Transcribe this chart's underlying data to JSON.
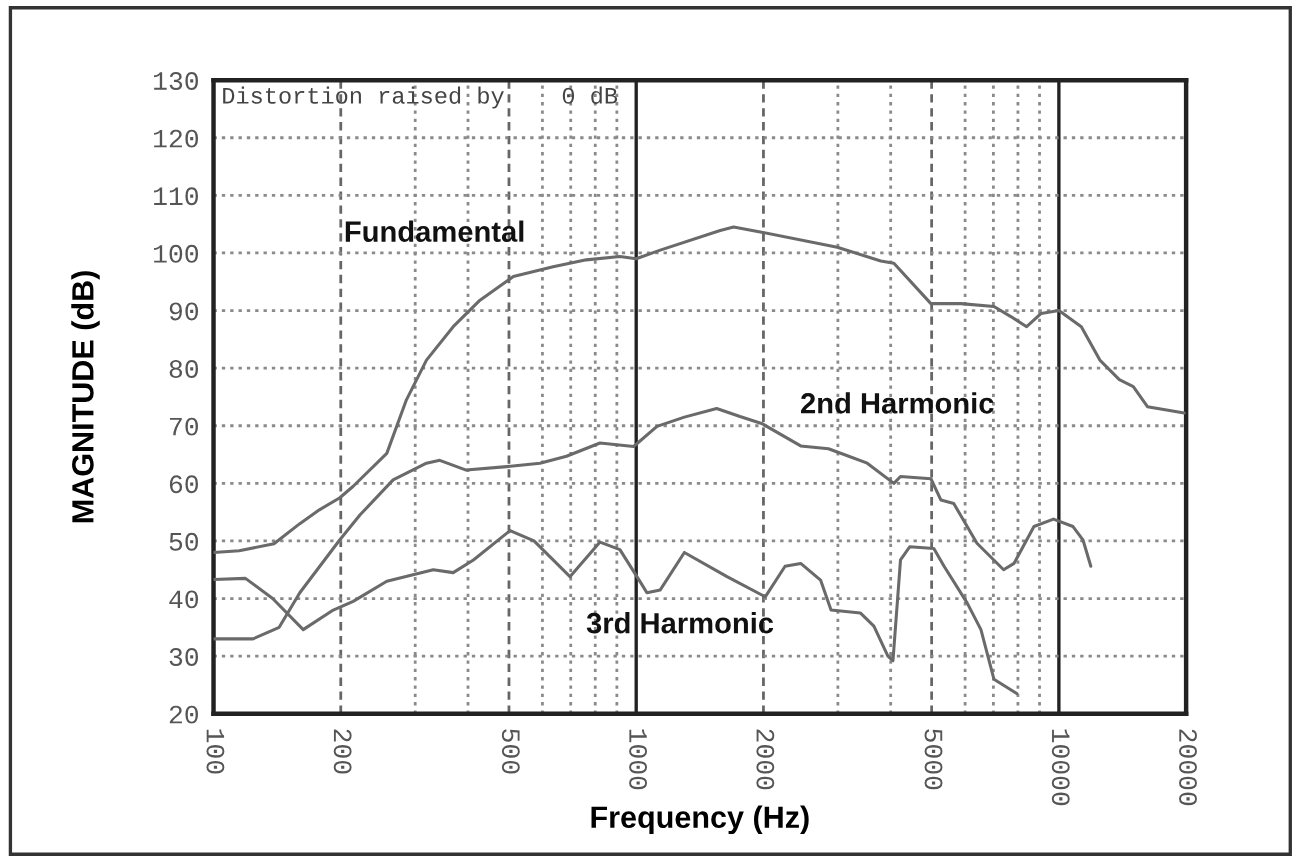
{
  "chart_data": {
    "type": "line",
    "xlabel": "Frequency (Hz)",
    "ylabel": "MAGNITUDE (dB)",
    "annotations": [
      "Distortion raised by    0 dB"
    ],
    "log": "x",
    "xlim": [
      100,
      20000
    ],
    "ylim": [
      20,
      130
    ],
    "xticks": [
      100,
      200,
      {
        "value": 300,
        "label": null
      },
      {
        "value": 400,
        "label": null
      },
      500,
      {
        "value": 600,
        "label": null
      },
      {
        "value": 700,
        "label": null
      },
      {
        "value": 800,
        "label": null
      },
      {
        "value": 900,
        "label": null
      },
      1000,
      2000,
      {
        "value": 3000,
        "label": null
      },
      {
        "value": 4000,
        "label": null
      },
      5000,
      {
        "value": 6000,
        "label": null
      },
      {
        "value": 7000,
        "label": null
      },
      {
        "value": 8000,
        "label": null
      },
      {
        "value": 9000,
        "label": null
      },
      10000,
      20000
    ],
    "yticks": [
      20,
      30,
      40,
      50,
      60,
      70,
      80,
      90,
      100,
      110,
      120,
      130
    ],
    "grid": true,
    "line_style": "solid",
    "marker": "none",
    "series": [
      {
        "name": "Fundamental",
        "color": "#6a6a6a",
        "x": [
          100,
          115,
          139,
          160,
          178,
          199,
          214,
          257,
          286,
          319,
          369,
          427,
          512,
          636,
          762,
          915,
          1000,
          1140,
          1580,
          1700,
          1980,
          2990,
          3790,
          4070,
          4980,
          5860,
          7020,
          7680,
          8390,
          9080,
          10000,
          11300,
          12500,
          13900,
          15000,
          16200,
          19800
        ],
        "values": [
          48,
          48.3,
          49.5,
          53,
          55.4,
          57.5,
          59.5,
          65.2,
          74.5,
          81.4,
          87.2,
          91.8,
          95.9,
          97.6,
          98.8,
          99.4,
          99,
          100.5,
          103.9,
          104.5,
          103.6,
          101,
          98.6,
          98.2,
          91.2,
          91.2,
          90.7,
          89,
          87.2,
          89.5,
          90,
          87.2,
          81.4,
          78,
          76.8,
          73.3,
          72.2
        ]
      },
      {
        "name": "2nd Harmonic",
        "color": "#6a6a6a",
        "x": [
          100,
          124,
          143,
          160,
          199,
          222,
          266,
          319,
          343,
          396,
          494,
          592,
          684,
          821,
          986,
          1120,
          1300,
          1550,
          1760,
          1980,
          2450,
          2850,
          3160,
          3520,
          4070,
          4220,
          4980,
          5260,
          5640,
          6400,
          7400,
          7830,
          8730,
          9710,
          10800,
          11400,
          11900
        ],
        "values": [
          33,
          33,
          35,
          41,
          50.2,
          54.5,
          60.6,
          63.5,
          64,
          62.3,
          62.9,
          63.5,
          64.7,
          67,
          66.4,
          69.9,
          71.5,
          73,
          71.6,
          70.4,
          66.5,
          66,
          64.8,
          63.5,
          60,
          61.2,
          60.8,
          57.1,
          56.5,
          49.6,
          45,
          46.1,
          52.5,
          53.8,
          52.5,
          50.2,
          45.6
        ]
      },
      {
        "name": "3rd Harmonic",
        "color": "#6a6a6a",
        "x": [
          100,
          119,
          138,
          163,
          192,
          214,
          257,
          331,
          369,
          412,
          503,
          573,
          697,
          821,
          915,
          1030,
          1060,
          1140,
          1300,
          1640,
          2020,
          2250,
          2450,
          2730,
          2890,
          3390,
          3650,
          3940,
          4050,
          4220,
          4440,
          5060,
          5350,
          6070,
          6540,
          7020,
          7950
        ],
        "values": [
          43.3,
          43.5,
          40,
          34.6,
          38,
          39.5,
          43,
          45,
          44.5,
          46.7,
          51.8,
          50,
          43.8,
          49.8,
          48.5,
          42.5,
          41,
          41.5,
          48,
          43.8,
          40.3,
          45.6,
          46.1,
          43.2,
          38,
          37.5,
          35.2,
          30,
          29.2,
          46.7,
          49,
          48.7,
          45.6,
          39.2,
          34.6,
          26,
          23.5
        ]
      }
    ]
  }
}
